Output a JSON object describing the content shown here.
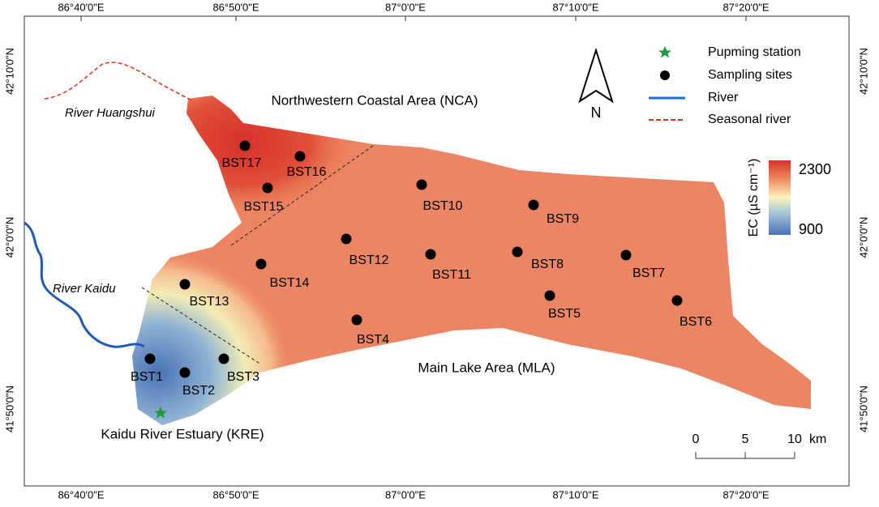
{
  "axes": {
    "longitudes": [
      "86°40'0\"E",
      "86°50'0\"E",
      "87°0'0\"E",
      "87°10'0\"E",
      "87°20'0\"E"
    ],
    "latitudes": [
      "42°10'0\"N",
      "42°0'0\"N",
      "41°50'0\"N"
    ]
  },
  "legend": {
    "items": [
      "Pupming station",
      "Sampling sites",
      "River",
      "Seasonal river"
    ],
    "north": "N"
  },
  "colorbar": {
    "title": "EC (µS cm⁻¹)",
    "max": 2300,
    "min": 900
  },
  "scale_bar": {
    "ticks": [
      0,
      5,
      10
    ],
    "unit": "km"
  },
  "regions": [
    "Northwestern Coastal Area (NCA)",
    "Main Lake Area (MLA)",
    "Kaidu River Estuary (KRE)"
  ],
  "rivers": [
    "River Huangshui",
    "River Kaidu"
  ],
  "sites": [
    "BST1",
    "BST2",
    "BST3",
    "BST4",
    "BST5",
    "BST6",
    "BST7",
    "BST8",
    "BST9",
    "BST10",
    "BST11",
    "BST12",
    "BST13",
    "BST14",
    "BST15",
    "BST16",
    "BST17"
  ]
}
